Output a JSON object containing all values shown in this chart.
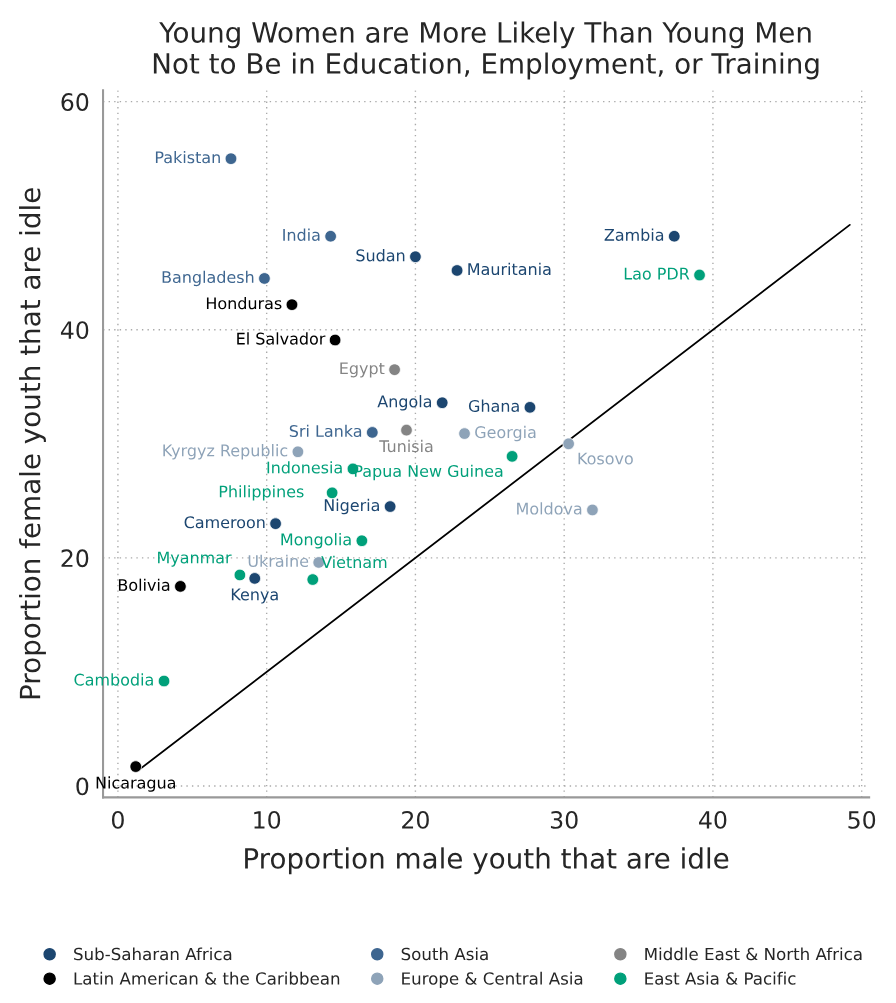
{
  "chart_data": {
    "type": "scatter",
    "title": "Young Women are More Likely Than Young Men\nNot to Be in Education, Employment, or Training",
    "xlabel": "Proportion male youth that are idle",
    "ylabel": "Proportion female youth that are idle",
    "xlim": [
      -1,
      50.5
    ],
    "ylim": [
      -1,
      61
    ],
    "xticks": [
      0,
      10,
      20,
      30,
      40,
      50
    ],
    "yticks": [
      0,
      20,
      40,
      60
    ],
    "grid": true,
    "legend": "bottom",
    "marker": "circle",
    "series": [
      {
        "name": "Sub-Saharan Africa",
        "color": "#1c4670",
        "x": [
          20.0,
          22.8,
          21.8,
          27.7,
          37.4,
          18.3,
          10.6,
          9.2
        ],
        "values": [
          46.4,
          45.2,
          33.6,
          33.2,
          48.2,
          24.5,
          23.0,
          18.2
        ]
      },
      {
        "name": "South Asia",
        "color": "#3e6690",
        "x": [
          7.6,
          14.3,
          9.85,
          17.1
        ],
        "values": [
          55.0,
          48.2,
          44.5,
          31.0
        ]
      },
      {
        "name": "Middle East & North Africa",
        "color": "#848484",
        "x": [
          18.6,
          19.4
        ],
        "values": [
          36.5,
          31.2
        ]
      },
      {
        "name": "Latin American & the Caribbean",
        "color": "#000000",
        "x": [
          11.7,
          14.6,
          4.2,
          1.2
        ],
        "values": [
          42.2,
          39.1,
          17.5,
          1.7
        ]
      },
      {
        "name": "Europe & Central Asia",
        "color": "#8ea3b8",
        "x": [
          23.3,
          30.3,
          31.9,
          12.1,
          13.5
        ],
        "values": [
          30.9,
          30.0,
          24.2,
          29.3,
          19.6
        ]
      },
      {
        "name": "East Asia & Pacific",
        "color": "#00a07a",
        "x": [
          39.1,
          26.5,
          15.8,
          14.4,
          16.4,
          8.2,
          13.1,
          3.1
        ],
        "values": [
          44.8,
          28.9,
          27.8,
          25.7,
          21.5,
          18.5,
          18.1,
          9.2
        ]
      },
      {
        "type": "line",
        "color": "#000000",
        "marker": "none",
        "x": [
          1.3,
          49.2
        ],
        "values": [
          1.3,
          49.2
        ]
      }
    ],
    "annotations": [
      {
        "text": "Sudan",
        "x": 20.0,
        "y": 46.4
      },
      {
        "text": "Mauritania",
        "x": 22.8,
        "y": 45.2
      },
      {
        "text": "Angola",
        "x": 21.8,
        "y": 33.6
      },
      {
        "text": "Ghana",
        "x": 27.7,
        "y": 33.2
      },
      {
        "text": "Zambia",
        "x": 37.4,
        "y": 48.2
      },
      {
        "text": "Nigeria",
        "x": 18.3,
        "y": 24.5
      },
      {
        "text": "Cameroon",
        "x": 10.6,
        "y": 23.0
      },
      {
        "text": "Kenya",
        "x": 9.2,
        "y": 18.2
      },
      {
        "text": "Pakistan",
        "x": 7.6,
        "y": 55.0
      },
      {
        "text": "India",
        "x": 14.3,
        "y": 48.2
      },
      {
        "text": "Bangladesh",
        "x": 9.85,
        "y": 44.5
      },
      {
        "text": "Sri Lanka",
        "x": 17.1,
        "y": 31.0
      },
      {
        "text": "Egypt",
        "x": 18.6,
        "y": 36.5
      },
      {
        "text": "Tunisia",
        "x": 19.4,
        "y": 31.2
      },
      {
        "text": "Honduras",
        "x": 11.7,
        "y": 42.2
      },
      {
        "text": "El Salvador",
        "x": 14.6,
        "y": 39.1
      },
      {
        "text": "Bolivia",
        "x": 4.2,
        "y": 17.5
      },
      {
        "text": "Nicaragua",
        "x": 1.2,
        "y": 1.7
      },
      {
        "text": "Georgia",
        "x": 23.3,
        "y": 30.9
      },
      {
        "text": "Kosovo",
        "x": 30.3,
        "y": 30.0
      },
      {
        "text": "Moldova",
        "x": 31.9,
        "y": 24.2
      },
      {
        "text": "Kyrgyz Republic",
        "x": 12.1,
        "y": 29.3
      },
      {
        "text": "Ukraine",
        "x": 13.5,
        "y": 19.6
      },
      {
        "text": "Lao PDR",
        "x": 39.1,
        "y": 44.8
      },
      {
        "text": "Papua New Guinea",
        "x": 26.5,
        "y": 28.9
      },
      {
        "text": "Indonesia",
        "x": 15.8,
        "y": 27.8
      },
      {
        "text": "Philippines",
        "x": 14.4,
        "y": 25.7
      },
      {
        "text": "Mongolia",
        "x": 16.4,
        "y": 21.5
      },
      {
        "text": "Myanmar",
        "x": 8.2,
        "y": 18.5
      },
      {
        "text": "Vietnam",
        "x": 13.1,
        "y": 18.1
      },
      {
        "text": "Cambodia",
        "x": 3.1,
        "y": 9.2
      }
    ]
  }
}
